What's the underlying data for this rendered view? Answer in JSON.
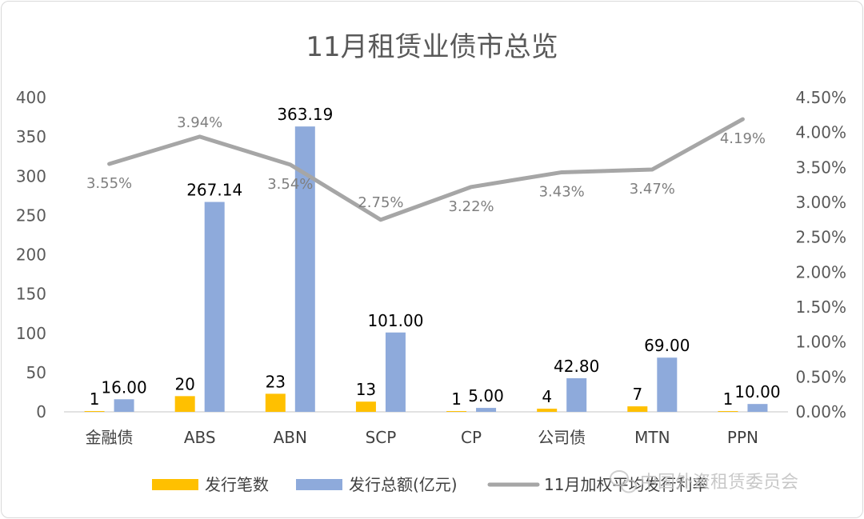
{
  "chart_data": {
    "type": "bar",
    "title": "11月租赁业债市总览",
    "categories": [
      "金融债",
      "ABS",
      "ABN",
      "SCP",
      "CP",
      "公司债",
      "MTN",
      "PPN"
    ],
    "series": [
      {
        "name": "发行笔数",
        "axis": "left",
        "values": [
          1,
          20,
          23,
          13,
          1,
          4,
          7,
          1
        ],
        "labels": [
          "1",
          "20",
          "23",
          "13",
          "1",
          "4",
          "7",
          "1"
        ],
        "color": "#ffc000"
      },
      {
        "name": "发行总额(亿元)",
        "axis": "left",
        "values": [
          16.0,
          267.14,
          363.19,
          101.0,
          5.0,
          42.8,
          69.0,
          10.0
        ],
        "labels": [
          "16.00",
          "267.14",
          "363.19",
          "101.00",
          "5.00",
          "42.80",
          "69.00",
          "10.00"
        ],
        "color": "#8eaadb"
      },
      {
        "name": "11月加权平均发行利率",
        "type": "line",
        "axis": "right",
        "values": [
          3.55,
          3.94,
          3.54,
          2.75,
          3.22,
          3.43,
          3.47,
          4.19
        ],
        "labels": [
          "3.55%",
          "3.94%",
          "3.54%",
          "2.75%",
          "3.22%",
          "3.43%",
          "3.47%",
          "4.19%"
        ],
        "color": "#a6a6a6"
      }
    ],
    "y_left": {
      "ylim": [
        0,
        400
      ],
      "ticks": [
        0,
        50,
        100,
        150,
        200,
        250,
        300,
        350,
        400
      ],
      "tick_labels": [
        "0",
        "50",
        "100",
        "150",
        "200",
        "250",
        "300",
        "350",
        "400"
      ]
    },
    "y_right": {
      "ylim": [
        0,
        4.5
      ],
      "ticks": [
        0,
        0.5,
        1.0,
        1.5,
        2.0,
        2.5,
        3.0,
        3.5,
        4.0,
        4.5
      ],
      "tick_labels": [
        "0.00%",
        "0.50%",
        "1.00%",
        "1.50%",
        "2.00%",
        "2.50%",
        "3.00%",
        "3.50%",
        "4.00%",
        "4.50%"
      ]
    },
    "legend": "bottom",
    "grid": false
  },
  "watermark": {
    "text": "中国外资租赁委员会",
    "icon": "wechat-icon"
  }
}
